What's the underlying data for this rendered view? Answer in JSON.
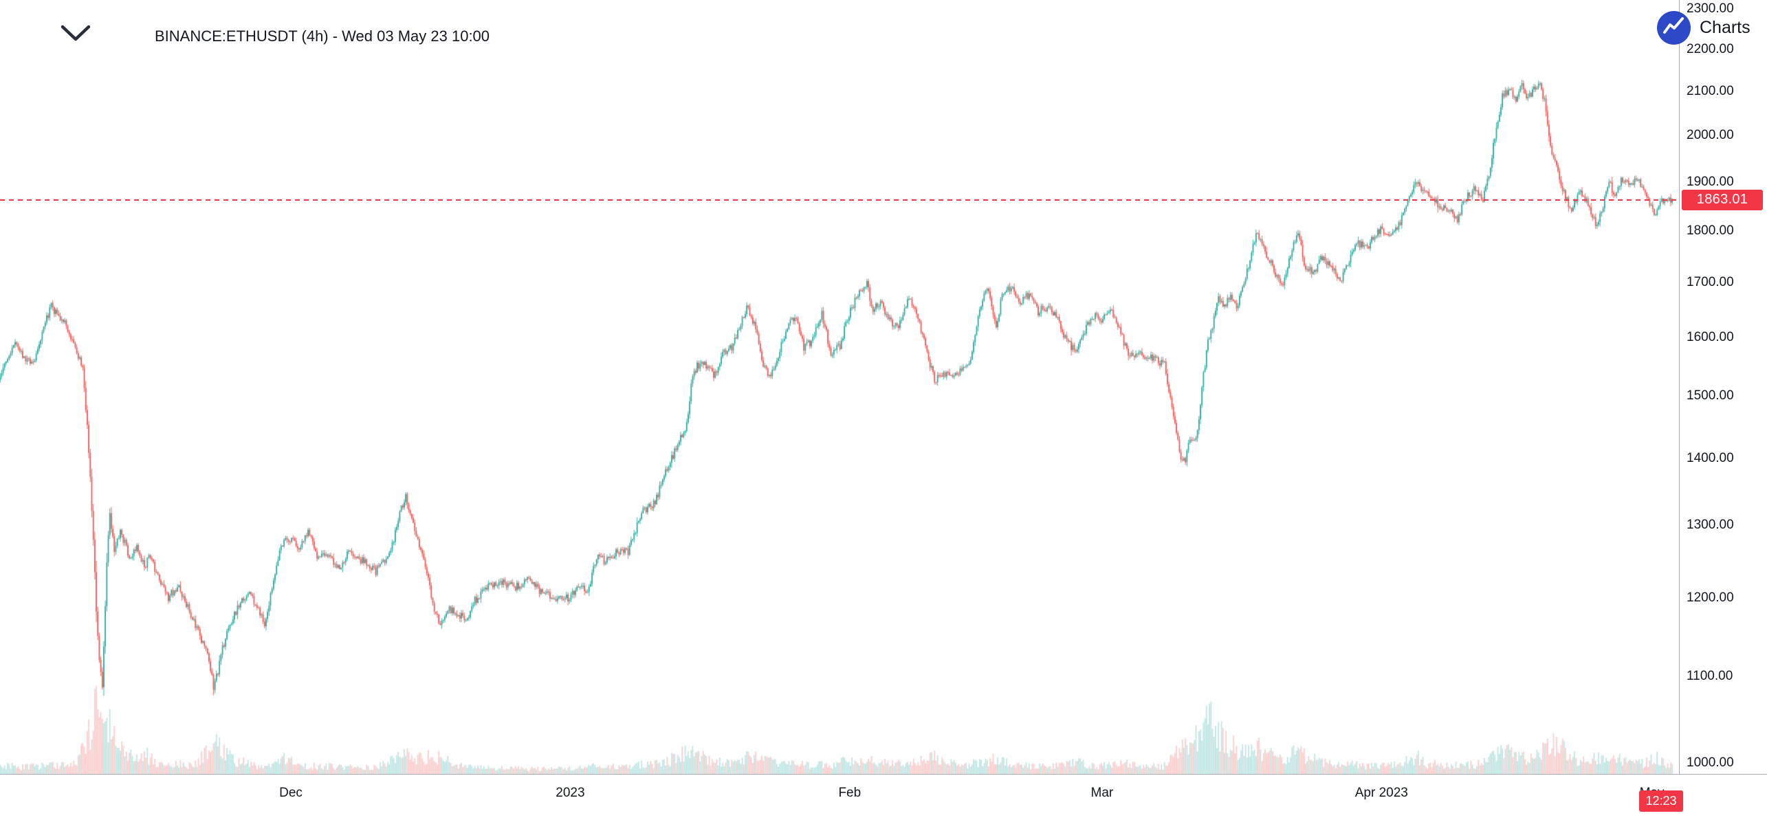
{
  "header": {
    "title": "BINANCE:ETHUSDT (4h) - Wed 03 May 23 10:00"
  },
  "attribution": {
    "label": "Charts",
    "logo_color": "#2d49c7"
  },
  "chart_data": {
    "type": "candlestick",
    "symbol": "BINANCE:ETHUSDT",
    "interval": "4h",
    "timestamp_label": "Wed 03 May 23 10:00",
    "scale": "log",
    "current_price": 1863.01,
    "current_price_label": "1863.01",
    "countdown": "12:23",
    "bars_per_day": 6,
    "start_day": -2.5,
    "end_day": 183.33,
    "seed": 9,
    "colors": {
      "up": "#26a69a",
      "down": "#ef5350",
      "vol_up": "rgba(38,166,154,0.30)",
      "vol_down": "rgba(239,83,80,0.30)",
      "price_line": "#f23645",
      "axis_text": "#131722",
      "axis_line": "#a8abb3"
    },
    "y_axis": {
      "min": 1000,
      "max": 2300,
      "step": 100,
      "ticks": [
        "2300.00",
        "2200.00",
        "2100.00",
        "2000.00",
        "1900.00",
        "1800.00",
        "1700.00",
        "1600.00",
        "1500.00",
        "1400.00",
        "1300.00",
        "1200.00",
        "1100.00",
        "1000.00"
      ]
    },
    "x_ticks": [
      {
        "label": "Dec",
        "day": 30
      },
      {
        "label": "2023",
        "day": 61
      },
      {
        "label": "Feb",
        "day": 92
      },
      {
        "label": "Mar",
        "day": 120
      },
      {
        "label": "Apr 2023",
        "day": 151
      },
      {
        "label": "May",
        "day": 181
      }
    ],
    "price_anchors": [
      [
        -2.5,
        1525
      ],
      [
        -1.5,
        1558
      ],
      [
        -0.5,
        1585
      ],
      [
        0.5,
        1565
      ],
      [
        1.5,
        1552
      ],
      [
        2.5,
        1610
      ],
      [
        3.5,
        1655
      ],
      [
        4.2,
        1638
      ],
      [
        5,
        1625
      ],
      [
        6,
        1585
      ],
      [
        7,
        1548
      ],
      [
        7.6,
        1428
      ],
      [
        8.1,
        1300
      ],
      [
        8.5,
        1180
      ],
      [
        8.9,
        1112
      ],
      [
        9.2,
        1085
      ],
      [
        9.6,
        1230
      ],
      [
        10,
        1318
      ],
      [
        10.5,
        1262
      ],
      [
        11.2,
        1292
      ],
      [
        12.3,
        1250
      ],
      [
        13,
        1272
      ],
      [
        13.8,
        1242
      ],
      [
        14.5,
        1256
      ],
      [
        15.5,
        1220
      ],
      [
        16.5,
        1200
      ],
      [
        17.5,
        1216
      ],
      [
        18.5,
        1192
      ],
      [
        19.5,
        1165
      ],
      [
        20.3,
        1142
      ],
      [
        21,
        1120
      ],
      [
        21.5,
        1088
      ],
      [
        22,
        1106
      ],
      [
        22.5,
        1136
      ],
      [
        23.5,
        1170
      ],
      [
        24.5,
        1192
      ],
      [
        25.5,
        1205
      ],
      [
        26.5,
        1186
      ],
      [
        27.2,
        1162
      ],
      [
        28,
        1216
      ],
      [
        29,
        1272
      ],
      [
        30,
        1282
      ],
      [
        31,
        1268
      ],
      [
        32,
        1292
      ],
      [
        33,
        1256
      ],
      [
        34,
        1262
      ],
      [
        35.5,
        1240
      ],
      [
        36.5,
        1266
      ],
      [
        38,
        1250
      ],
      [
        39.5,
        1236
      ],
      [
        41,
        1256
      ],
      [
        42.3,
        1322
      ],
      [
        42.8,
        1342
      ],
      [
        43.5,
        1310
      ],
      [
        44.5,
        1266
      ],
      [
        45.3,
        1230
      ],
      [
        46,
        1182
      ],
      [
        46.8,
        1164
      ],
      [
        47.5,
        1186
      ],
      [
        48.5,
        1180
      ],
      [
        49.5,
        1170
      ],
      [
        50.5,
        1196
      ],
      [
        52,
        1214
      ],
      [
        53.5,
        1220
      ],
      [
        55,
        1214
      ],
      [
        56.5,
        1226
      ],
      [
        58,
        1206
      ],
      [
        59.5,
        1198
      ],
      [
        61,
        1200
      ],
      [
        62,
        1214
      ],
      [
        63,
        1208
      ],
      [
        64,
        1254
      ],
      [
        65,
        1250
      ],
      [
        66,
        1260
      ],
      [
        67.5,
        1264
      ],
      [
        69,
        1318
      ],
      [
        70.5,
        1334
      ],
      [
        72,
        1392
      ],
      [
        73,
        1420
      ],
      [
        74,
        1452
      ],
      [
        74.5,
        1520
      ],
      [
        75.2,
        1552
      ],
      [
        76,
        1556
      ],
      [
        77,
        1532
      ],
      [
        78,
        1570
      ],
      [
        79,
        1582
      ],
      [
        80,
        1622
      ],
      [
        80.7,
        1655
      ],
      [
        81.5,
        1624
      ],
      [
        82.5,
        1556
      ],
      [
        83.2,
        1532
      ],
      [
        84,
        1562
      ],
      [
        85,
        1610
      ],
      [
        86,
        1640
      ],
      [
        87,
        1582
      ],
      [
        88,
        1596
      ],
      [
        89,
        1642
      ],
      [
        90,
        1572
      ],
      [
        91,
        1586
      ],
      [
        92,
        1640
      ],
      [
        93,
        1678
      ],
      [
        94,
        1700
      ],
      [
        94.6,
        1652
      ],
      [
        95.5,
        1664
      ],
      [
        96.5,
        1630
      ],
      [
        97.5,
        1616
      ],
      [
        98.5,
        1670
      ],
      [
        99.5,
        1648
      ],
      [
        100.5,
        1582
      ],
      [
        101.5,
        1526
      ],
      [
        102.5,
        1540
      ],
      [
        103.5,
        1532
      ],
      [
        104.5,
        1546
      ],
      [
        105.5,
        1562
      ],
      [
        106.3,
        1630
      ],
      [
        107.3,
        1696
      ],
      [
        107.8,
        1660
      ],
      [
        108.3,
        1616
      ],
      [
        109,
        1678
      ],
      [
        110,
        1690
      ],
      [
        111,
        1660
      ],
      [
        112,
        1680
      ],
      [
        113,
        1646
      ],
      [
        114,
        1656
      ],
      [
        115,
        1640
      ],
      [
        116,
        1600
      ],
      [
        117,
        1576
      ],
      [
        118,
        1606
      ],
      [
        119,
        1640
      ],
      [
        120,
        1630
      ],
      [
        121,
        1650
      ],
      [
        122,
        1618
      ],
      [
        123,
        1566
      ],
      [
        124,
        1570
      ],
      [
        125.5,
        1564
      ],
      [
        127,
        1554
      ],
      [
        128.3,
        1440
      ],
      [
        128.8,
        1405
      ],
      [
        129.3,
        1390
      ],
      [
        129.8,
        1430
      ],
      [
        130.3,
        1420
      ],
      [
        130.8,
        1456
      ],
      [
        131.3,
        1530
      ],
      [
        131.8,
        1590
      ],
      [
        132.3,
        1620
      ],
      [
        133,
        1676
      ],
      [
        133.6,
        1654
      ],
      [
        134.3,
        1680
      ],
      [
        135,
        1652
      ],
      [
        135.8,
        1700
      ],
      [
        136.5,
        1740
      ],
      [
        137.2,
        1796
      ],
      [
        138,
        1766
      ],
      [
        139,
        1730
      ],
      [
        140,
        1692
      ],
      [
        141,
        1750
      ],
      [
        141.8,
        1800
      ],
      [
        142.5,
        1736
      ],
      [
        143.5,
        1716
      ],
      [
        144.5,
        1750
      ],
      [
        145.5,
        1730
      ],
      [
        146.5,
        1700
      ],
      [
        147.5,
        1744
      ],
      [
        148.5,
        1774
      ],
      [
        149.5,
        1768
      ],
      [
        150.5,
        1794
      ],
      [
        151,
        1804
      ],
      [
        152,
        1790
      ],
      [
        153,
        1810
      ],
      [
        154,
        1858
      ],
      [
        154.8,
        1904
      ],
      [
        155.5,
        1888
      ],
      [
        156.5,
        1864
      ],
      [
        157.5,
        1854
      ],
      [
        158.5,
        1840
      ],
      [
        159.5,
        1824
      ],
      [
        160.5,
        1868
      ],
      [
        161.5,
        1888
      ],
      [
        162.3,
        1864
      ],
      [
        163,
        1920
      ],
      [
        163.8,
        2008
      ],
      [
        164.5,
        2088
      ],
      [
        165.3,
        2104
      ],
      [
        166,
        2078
      ],
      [
        166.6,
        2118
      ],
      [
        167.3,
        2084
      ],
      [
        168,
        2104
      ],
      [
        168.7,
        2114
      ],
      [
        169.3,
        2068
      ],
      [
        169.8,
        1980
      ],
      [
        170.3,
        1940
      ],
      [
        170.9,
        1906
      ],
      [
        171.5,
        1864
      ],
      [
        172.2,
        1846
      ],
      [
        173,
        1880
      ],
      [
        174,
        1856
      ],
      [
        174.8,
        1814
      ],
      [
        175.5,
        1836
      ],
      [
        176.3,
        1904
      ],
      [
        177,
        1870
      ],
      [
        177.8,
        1908
      ],
      [
        178.5,
        1894
      ],
      [
        179.5,
        1904
      ],
      [
        180.5,
        1874
      ],
      [
        181.3,
        1830
      ],
      [
        182,
        1854
      ],
      [
        182.7,
        1870
      ],
      [
        183.33,
        1863.01
      ]
    ],
    "volume_anchors": [
      [
        -2.5,
        0.1
      ],
      [
        0,
        0.08
      ],
      [
        3,
        0.1
      ],
      [
        6,
        0.12
      ],
      [
        7.5,
        0.45
      ],
      [
        8.3,
        0.75
      ],
      [
        9,
        1.0
      ],
      [
        9.5,
        0.65
      ],
      [
        10.2,
        0.45
      ],
      [
        11,
        0.3
      ],
      [
        12,
        0.22
      ],
      [
        13,
        0.18
      ],
      [
        14,
        0.22
      ],
      [
        15,
        0.14
      ],
      [
        17,
        0.12
      ],
      [
        19,
        0.1
      ],
      [
        21,
        0.28
      ],
      [
        21.7,
        0.38
      ],
      [
        22.5,
        0.25
      ],
      [
        24,
        0.15
      ],
      [
        26,
        0.1
      ],
      [
        28,
        0.12
      ],
      [
        29,
        0.18
      ],
      [
        31,
        0.1
      ],
      [
        33,
        0.09
      ],
      [
        36,
        0.08
      ],
      [
        39,
        0.08
      ],
      [
        42.5,
        0.22
      ],
      [
        44.5,
        0.2
      ],
      [
        46.5,
        0.18
      ],
      [
        49,
        0.09
      ],
      [
        52,
        0.07
      ],
      [
        56,
        0.06
      ],
      [
        60,
        0.06
      ],
      [
        62,
        0.07
      ],
      [
        64,
        0.1
      ],
      [
        67,
        0.08
      ],
      [
        69,
        0.12
      ],
      [
        72,
        0.16
      ],
      [
        74.5,
        0.28
      ],
      [
        75.5,
        0.22
      ],
      [
        77,
        0.14
      ],
      [
        79,
        0.12
      ],
      [
        80.7,
        0.2
      ],
      [
        82.5,
        0.16
      ],
      [
        84,
        0.12
      ],
      [
        86,
        0.12
      ],
      [
        88,
        0.1
      ],
      [
        90,
        0.12
      ],
      [
        92,
        0.16
      ],
      [
        94,
        0.18
      ],
      [
        96,
        0.12
      ],
      [
        98,
        0.12
      ],
      [
        100.5,
        0.16
      ],
      [
        101.5,
        0.2
      ],
      [
        103,
        0.12
      ],
      [
        105,
        0.1
      ],
      [
        107,
        0.16
      ],
      [
        108.3,
        0.18
      ],
      [
        110,
        0.1
      ],
      [
        112,
        0.09
      ],
      [
        114,
        0.08
      ],
      [
        116,
        0.12
      ],
      [
        117,
        0.14
      ],
      [
        119,
        0.1
      ],
      [
        121,
        0.1
      ],
      [
        123,
        0.12
      ],
      [
        125,
        0.08
      ],
      [
        127,
        0.1
      ],
      [
        128.5,
        0.3
      ],
      [
        129.3,
        0.45
      ],
      [
        130,
        0.4
      ],
      [
        131.3,
        0.55
      ],
      [
        132,
        0.6
      ],
      [
        133,
        0.5
      ],
      [
        134,
        0.35
      ],
      [
        135,
        0.3
      ],
      [
        136.5,
        0.28
      ],
      [
        137.2,
        0.3
      ],
      [
        138.5,
        0.22
      ],
      [
        140,
        0.18
      ],
      [
        141.5,
        0.25
      ],
      [
        143,
        0.18
      ],
      [
        145,
        0.12
      ],
      [
        147,
        0.12
      ],
      [
        149,
        0.1
      ],
      [
        151,
        0.1
      ],
      [
        153,
        0.12
      ],
      [
        154.8,
        0.2
      ],
      [
        156,
        0.12
      ],
      [
        158,
        0.1
      ],
      [
        160,
        0.1
      ],
      [
        162,
        0.12
      ],
      [
        163.5,
        0.22
      ],
      [
        164.5,
        0.28
      ],
      [
        166,
        0.22
      ],
      [
        167.5,
        0.18
      ],
      [
        169.5,
        0.3
      ],
      [
        170.3,
        0.38
      ],
      [
        171.5,
        0.25
      ],
      [
        173,
        0.15
      ],
      [
        174.8,
        0.2
      ],
      [
        176.3,
        0.22
      ],
      [
        178,
        0.14
      ],
      [
        180,
        0.12
      ],
      [
        181.3,
        0.2
      ],
      [
        182.5,
        0.12
      ],
      [
        183.4,
        0.1
      ]
    ]
  }
}
